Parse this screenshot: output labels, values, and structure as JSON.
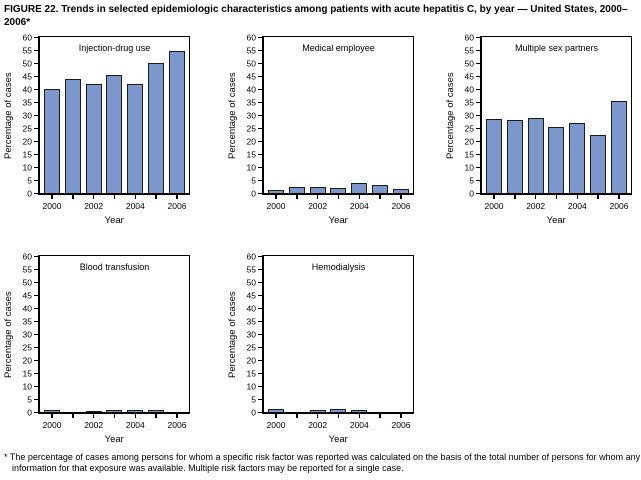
{
  "figure": {
    "title": "FIGURE 22. Trends in selected epidemiologic characteristics among patients with acute hepatitis C, by year — United States, 2000–2006*",
    "footnote": "* The percentage of cases among persons for whom a specific risk factor was reported was calculated on the basis of the total number of persons for whom any information for that exposure was available. Multiple risk factors may be reported for a single case."
  },
  "colors": {
    "bar_fill": "#7b97cc",
    "bar_border": "#1c1c1c",
    "axis": "#000000",
    "background": "#ffffff"
  },
  "chart_data": [
    {
      "type": "bar",
      "title": "Injection-drug use",
      "categories": [
        "2000",
        "2001",
        "2002",
        "2003",
        "2004",
        "2005",
        "2006"
      ],
      "values": [
        40,
        44,
        42,
        45.5,
        42,
        50,
        54.5
      ],
      "xlabel": "Year",
      "ylabel": "Percentage of cases",
      "ylim": [
        0,
        60
      ],
      "ytick_step": 5,
      "xtick_labels": [
        "2000",
        "2002",
        "2004",
        "2006"
      ],
      "grid": false,
      "legend": "none"
    },
    {
      "type": "bar",
      "title": "Medical employee",
      "categories": [
        "2000",
        "2001",
        "2002",
        "2003",
        "2004",
        "2005",
        "2006"
      ],
      "values": [
        1,
        2.5,
        2.5,
        2,
        4,
        3,
        1.5
      ],
      "xlabel": "Year",
      "ylabel": "Percentage of cases",
      "ylim": [
        0,
        60
      ],
      "ytick_step": 5,
      "xtick_labels": [
        "2000",
        "2002",
        "2004",
        "2006"
      ],
      "grid": false,
      "legend": "none"
    },
    {
      "type": "bar",
      "title": "Multiple sex partners",
      "categories": [
        "2000",
        "2001",
        "2002",
        "2003",
        "2004",
        "2005",
        "2006"
      ],
      "values": [
        28.5,
        28,
        29,
        25.5,
        27,
        22.5,
        35.5
      ],
      "xlabel": "Year",
      "ylabel": "Percentage of cases",
      "ylim": [
        0,
        60
      ],
      "ytick_step": 5,
      "xtick_labels": [
        "2000",
        "2002",
        "2004",
        "2006"
      ],
      "grid": false,
      "legend": "none"
    },
    {
      "type": "bar",
      "title": "Blood transfusion",
      "categories": [
        "2000",
        "2001",
        "2002",
        "2003",
        "2004",
        "2005",
        "2006"
      ],
      "values": [
        0.8,
        0,
        0.4,
        0.8,
        0.8,
        0.8,
        0
      ],
      "xlabel": "Year",
      "ylabel": "Percentage of cases",
      "ylim": [
        0,
        60
      ],
      "ytick_step": 5,
      "xtick_labels": [
        "2000",
        "2002",
        "2004",
        "2006"
      ],
      "grid": false,
      "legend": "none"
    },
    {
      "type": "bar",
      "title": "Hemodialysis",
      "categories": [
        "2000",
        "2001",
        "2002",
        "2003",
        "2004",
        "2005",
        "2006"
      ],
      "values": [
        1.2,
        0,
        0.7,
        1.2,
        0.7,
        0,
        0
      ],
      "xlabel": "Year",
      "ylabel": "Percentage of cases",
      "ylim": [
        0,
        60
      ],
      "ytick_step": 5,
      "xtick_labels": [
        "2000",
        "2002",
        "2004",
        "2006"
      ],
      "grid": false,
      "legend": "none"
    }
  ]
}
